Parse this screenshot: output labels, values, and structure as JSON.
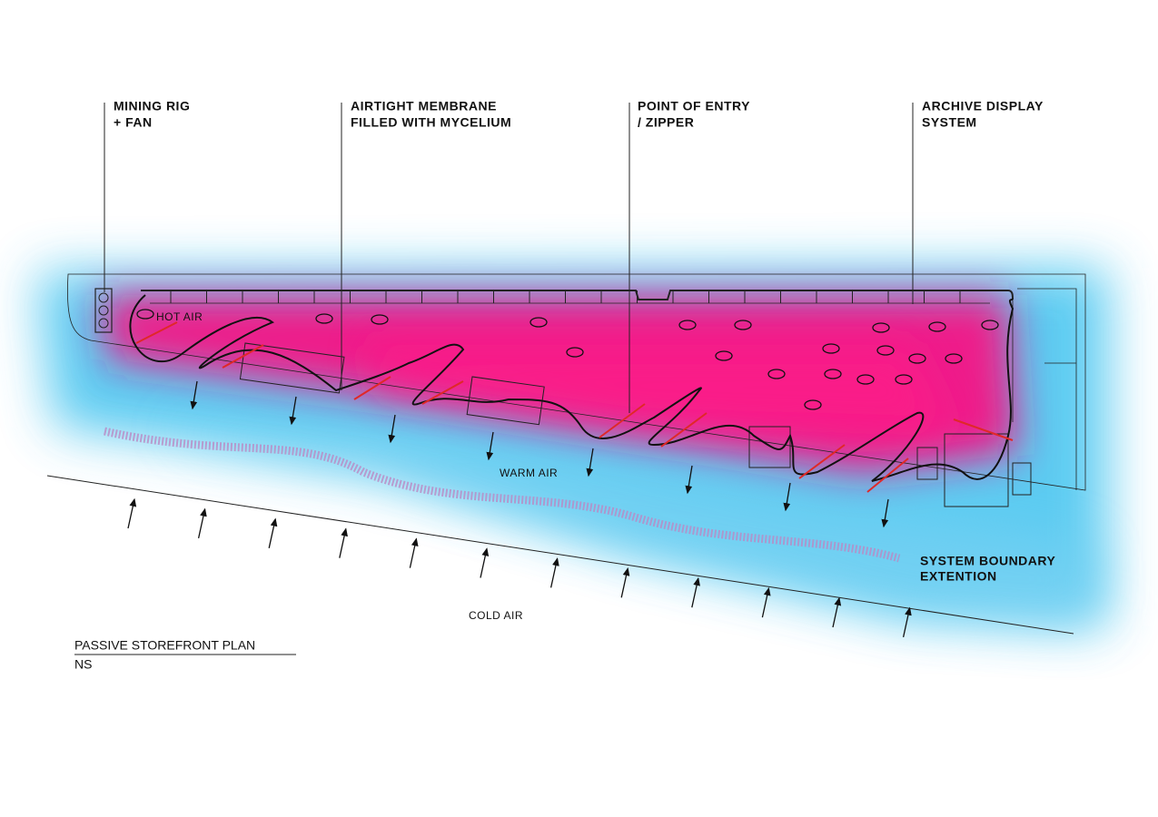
{
  "callouts": [
    {
      "lines": [
        "MINING RIG",
        "+ FAN"
      ]
    },
    {
      "lines": [
        "AIRTIGHT MEMBRANE",
        "FILLED WITH MYCELIUM"
      ]
    },
    {
      "lines": [
        "POINT OF ENTRY",
        "/ ZIPPER"
      ]
    },
    {
      "lines": [
        "ARCHIVE DISPLAY",
        "SYSTEM"
      ]
    }
  ],
  "air_labels": {
    "hot": "HOT AIR",
    "warm": "WARM AIR",
    "cold": "COLD AIR"
  },
  "boundary_label": [
    "SYSTEM BOUNDARY",
    "EXTENTION"
  ],
  "plan_title": "PASSIVE STOREFRONT PLAN",
  "scale": "NS"
}
